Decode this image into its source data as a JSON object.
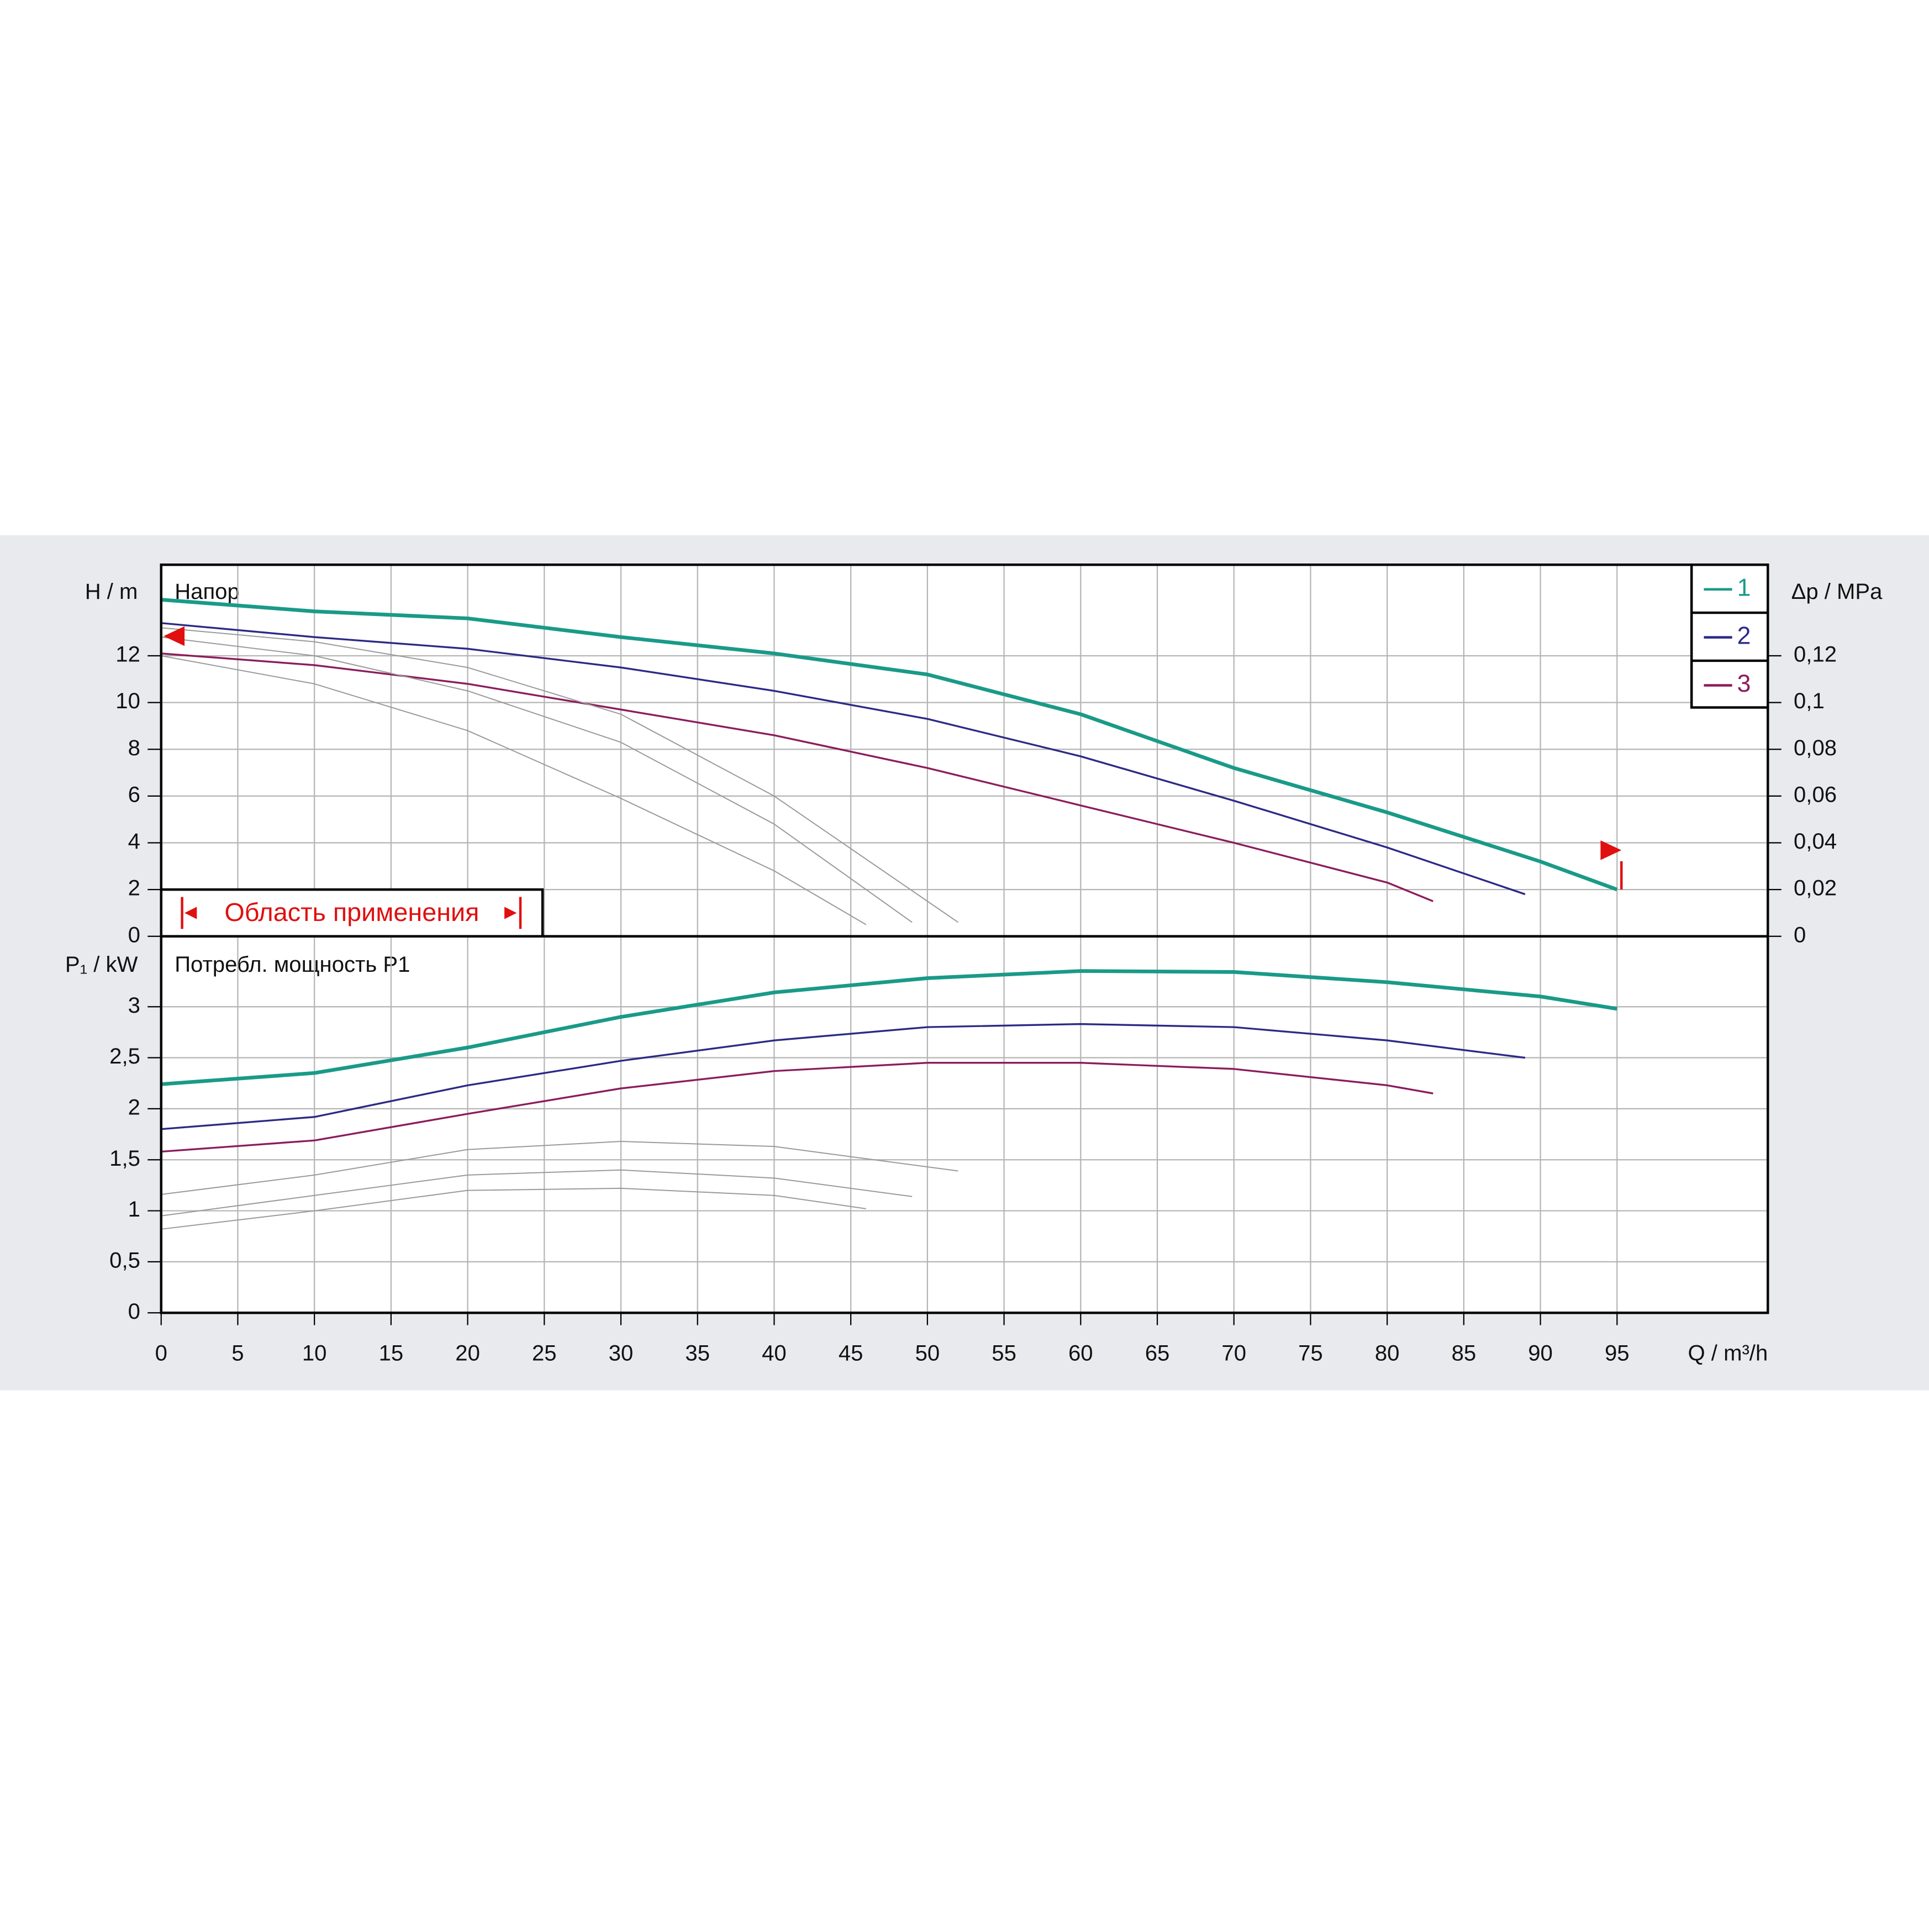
{
  "chart_data": [
    {
      "type": "line",
      "label": "Напор",
      "ylabel": "H / m",
      "y2label": "Δp / MPa",
      "annotation": "Область применения",
      "legend": "upper right",
      "grid": true,
      "xlim": [
        0,
        105
      ],
      "ylim": [
        0,
        16
      ],
      "yticks": [
        0,
        2,
        4,
        6,
        8,
        10,
        12
      ],
      "y2lim": [
        0,
        0.16
      ],
      "y2ticks": [
        0,
        {
          "value": 0.02,
          "label": "0,02"
        },
        {
          "value": 0.04,
          "label": "0,04"
        },
        {
          "value": 0.06,
          "label": "0,06"
        },
        {
          "value": 0.08,
          "label": "0,08"
        },
        {
          "value": 0.1,
          "label": "0,1"
        },
        {
          "value": 0.12,
          "label": "0,12"
        }
      ],
      "series": [
        {
          "name": "1",
          "color": "#1a9a88",
          "width": 3,
          "x": [
            0,
            10,
            20,
            30,
            40,
            50,
            60,
            70,
            80,
            90,
            95
          ],
          "values": [
            14.4,
            13.9,
            13.6,
            12.8,
            12.1,
            11.2,
            9.5,
            7.2,
            5.3,
            3.2,
            2.0
          ]
        },
        {
          "name": "2",
          "color": "#2b2a86",
          "width": 1.5,
          "x": [
            0,
            10,
            20,
            30,
            40,
            50,
            60,
            70,
            80,
            89
          ],
          "values": [
            13.4,
            12.8,
            12.3,
            11.5,
            10.5,
            9.3,
            7.7,
            5.8,
            3.8,
            1.8
          ]
        },
        {
          "name": "3",
          "color": "#8c1c5c",
          "width": 1.5,
          "x": [
            0,
            10,
            20,
            30,
            40,
            50,
            60,
            70,
            80,
            83
          ],
          "values": [
            12.1,
            11.6,
            10.8,
            9.7,
            8.6,
            7.2,
            5.6,
            4.0,
            2.3,
            1.5
          ]
        },
        {
          "color": "#9a9a9a",
          "width": 0.9,
          "x": [
            0,
            10,
            20,
            30,
            40,
            46
          ],
          "values": [
            12.0,
            10.8,
            8.8,
            5.9,
            2.8,
            0.5
          ]
        },
        {
          "color": "#9a9a9a",
          "width": 0.9,
          "x": [
            0,
            10,
            20,
            30,
            40,
            49
          ],
          "values": [
            12.8,
            12.0,
            10.5,
            8.3,
            4.8,
            0.6
          ]
        },
        {
          "color": "#9a9a9a",
          "width": 0.9,
          "x": [
            0,
            10,
            20,
            30,
            40,
            52
          ],
          "values": [
            13.2,
            12.6,
            11.5,
            9.5,
            6.0,
            0.6
          ]
        }
      ]
    },
    {
      "type": "line",
      "label": "Потребл. мощность P1",
      "ylabel": "P₁ / kW",
      "xlabel": "Q / m³/h",
      "grid": true,
      "xlim": [
        0,
        105
      ],
      "xticks": [
        0,
        5,
        10,
        15,
        20,
        25,
        30,
        35,
        40,
        45,
        50,
        55,
        60,
        65,
        70,
        75,
        80,
        85,
        90,
        95
      ],
      "ylim": [
        0,
        3.69
      ],
      "yticks": [
        0,
        {
          "value": 0.5,
          "label": "0,5"
        },
        1,
        {
          "value": 1.5,
          "label": "1,5"
        },
        2,
        {
          "value": 2.5,
          "label": "2,5"
        },
        3
      ],
      "series": [
        {
          "color": "#1a9a88",
          "width": 3,
          "x": [
            0,
            10,
            20,
            30,
            40,
            50,
            60,
            70,
            80,
            90,
            95
          ],
          "values": [
            2.24,
            2.35,
            2.6,
            2.9,
            3.14,
            3.28,
            3.35,
            3.34,
            3.24,
            3.1,
            2.98
          ]
        },
        {
          "color": "#2b2a86",
          "width": 1.5,
          "x": [
            0,
            10,
            20,
            30,
            40,
            50,
            60,
            70,
            80,
            89
          ],
          "values": [
            1.8,
            1.92,
            2.23,
            2.47,
            2.67,
            2.8,
            2.83,
            2.8,
            2.67,
            2.5
          ]
        },
        {
          "color": "#8c1c5c",
          "width": 1.5,
          "x": [
            0,
            10,
            20,
            30,
            40,
            50,
            60,
            70,
            80,
            83
          ],
          "values": [
            1.58,
            1.69,
            1.95,
            2.2,
            2.37,
            2.45,
            2.45,
            2.39,
            2.23,
            2.15
          ]
        },
        {
          "color": "#9a9a9a",
          "width": 0.9,
          "x": [
            0,
            10,
            20,
            30,
            40,
            46
          ],
          "values": [
            0.82,
            1.0,
            1.2,
            1.22,
            1.15,
            1.02
          ]
        },
        {
          "color": "#9a9a9a",
          "width": 0.9,
          "x": [
            0,
            10,
            20,
            30,
            40,
            49
          ],
          "values": [
            0.95,
            1.15,
            1.35,
            1.4,
            1.32,
            1.14
          ]
        },
        {
          "color": "#9a9a9a",
          "width": 0.9,
          "x": [
            0,
            10,
            20,
            30,
            40,
            52
          ],
          "values": [
            1.16,
            1.35,
            1.6,
            1.68,
            1.63,
            1.39
          ]
        }
      ]
    }
  ]
}
